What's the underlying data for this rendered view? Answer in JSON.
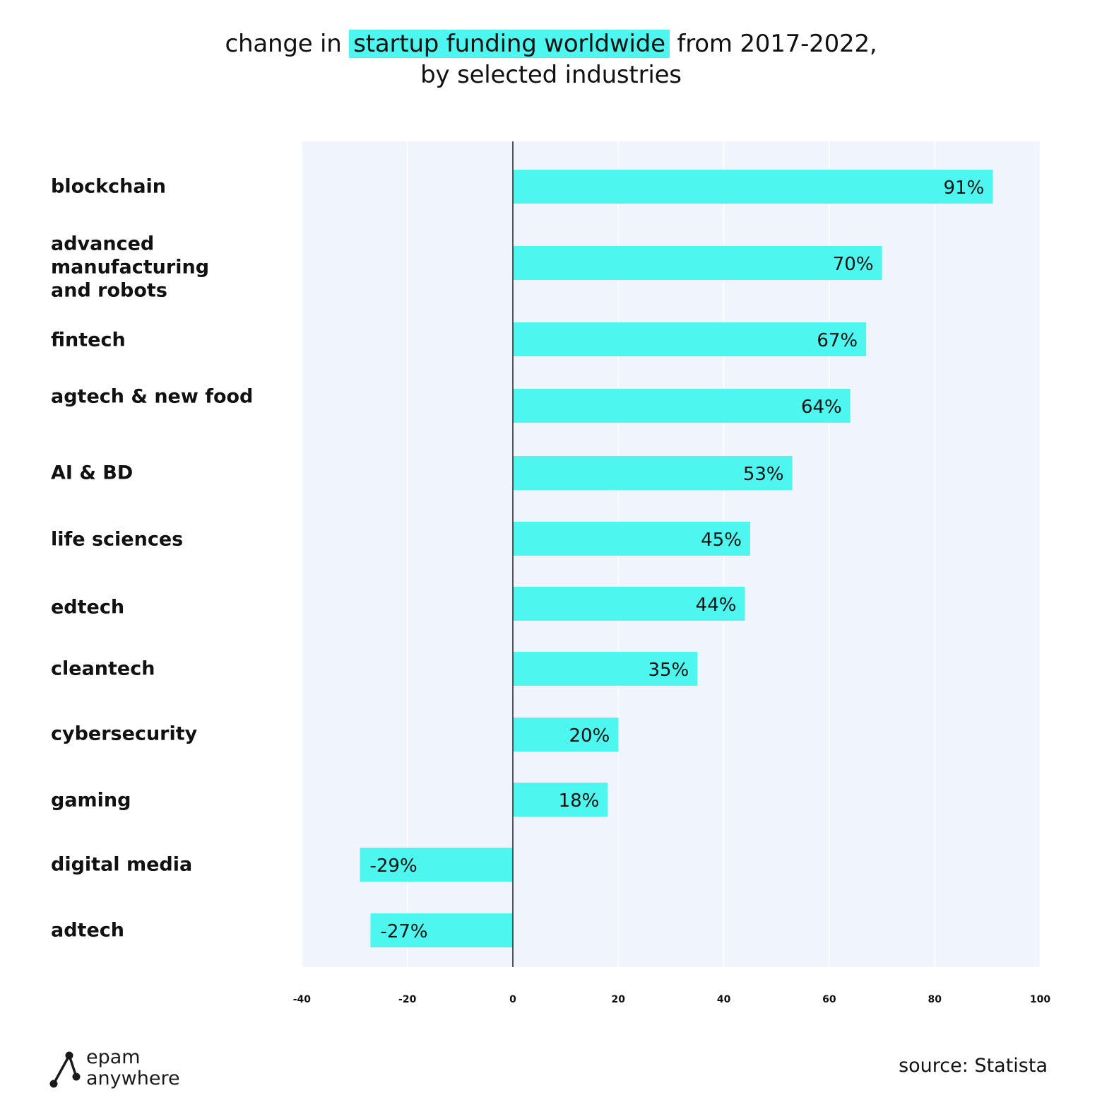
{
  "title": {
    "prefix": "change in ",
    "highlight": "startup funding worldwide",
    "suffix": " from 2017-2022,",
    "line2": "by selected industries"
  },
  "chart_data": {
    "type": "bar",
    "orientation": "horizontal",
    "categories": [
      "blockchain",
      "advanced manufacturing and robots",
      "fintech",
      "agtech & new food",
      "AI & BD",
      "life sciences",
      "edtech",
      "cleantech",
      "cybersecurity",
      "gaming",
      "digital media",
      "adtech"
    ],
    "values": [
      91,
      70,
      67,
      64,
      53,
      45,
      44,
      35,
      20,
      18,
      -29,
      -27
    ],
    "data_labels": [
      "91%",
      "70%",
      "67%",
      "64%",
      "53%",
      "45%",
      "44%",
      "35%",
      "20%",
      "18%",
      "-29%",
      "-27%"
    ],
    "xlim": [
      -40,
      100
    ],
    "xticks": [
      -40,
      -20,
      0,
      20,
      40,
      60,
      80,
      100
    ],
    "grid": true,
    "legend": "none",
    "colors": {
      "bar": "#4df6ee",
      "plot_bg": "#f0f4fd",
      "grid": "#ffffff",
      "zero_line": "#222222",
      "highlight": "#4df6ee"
    }
  },
  "logo": {
    "line1": "epam",
    "line2": "anywhere",
    "icon": "epam-anywhere-logo-icon"
  },
  "source": "source: Statista"
}
